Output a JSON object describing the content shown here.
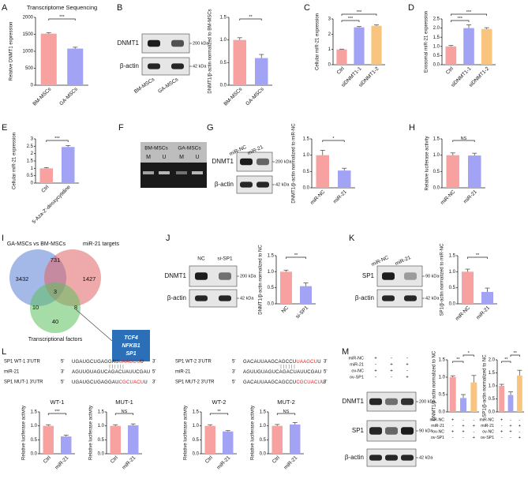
{
  "panel_labels": [
    "A",
    "B",
    "C",
    "D",
    "E",
    "F",
    "G",
    "H",
    "I",
    "J",
    "K",
    "L",
    "M"
  ],
  "chart_data": [
    {
      "type": "bar",
      "title": "Transcriptome Sequencing",
      "y_label": "Relative DNMT1 expression",
      "categories": [
        "BM-MSCs",
        "GA-MSCs"
      ],
      "values": [
        1520,
        1080
      ],
      "errors": [
        30,
        40
      ],
      "colors": [
        "#f7a1a1",
        "#a3a3f5"
      ],
      "ylim": [
        0,
        2000
      ],
      "yticks": [
        0,
        500,
        1000,
        1500,
        2000
      ],
      "significance": [
        {
          "label": "***",
          "pair": [
            0,
            1
          ]
        }
      ]
    },
    {
      "type": "bar",
      "y_label": "DNMT1/β-actin normalized to BM-MSCs",
      "categories": [
        "BM-MSCs",
        "GA-MSCs"
      ],
      "values": [
        1.0,
        0.6
      ],
      "errors": [
        0.05,
        0.08
      ],
      "colors": [
        "#f7a1a1",
        "#a3a3f5"
      ],
      "ylim": [
        0,
        1.5
      ],
      "yticks": [
        {
          "value": 0,
          "label": "0.0"
        },
        0.5,
        {
          "value": 1,
          "label": "1.0"
        },
        1.5
      ],
      "significance": [
        {
          "label": "**",
          "pair": [
            0,
            1
          ]
        }
      ]
    },
    {
      "type": "bar",
      "y_label": "Cellular miR-21 expression",
      "categories": [
        "Ctrl",
        "siDNMT1-1",
        "siDNMT1-2"
      ],
      "values": [
        1.0,
        2.45,
        2.55
      ],
      "errors": [
        0.02,
        0.05,
        0.06
      ],
      "colors": [
        "#f7a1a1",
        "#a3a3f5",
        "#f9c57e"
      ],
      "ylim": [
        0,
        3
      ],
      "yticks": [
        0,
        1,
        2,
        3
      ],
      "significance": [
        {
          "label": "***",
          "pair": [
            0,
            1
          ]
        },
        {
          "label": "***",
          "pair": [
            0,
            2
          ]
        }
      ]
    },
    {
      "type": "bar",
      "y_label": "Exosomal miR-21 expression",
      "categories": [
        "Ctrl",
        "siDNMT1-1",
        "siDNMT1-2"
      ],
      "values": [
        1.0,
        2.0,
        1.95
      ],
      "errors": [
        0.05,
        0.18,
        0.07
      ],
      "colors": [
        "#f7a1a1",
        "#a3a3f5",
        "#f9c57e"
      ],
      "ylim": [
        0,
        2.5
      ],
      "yticks": [
        {
          "value": 0,
          "label": "0.0"
        },
        0.5,
        {
          "value": 1,
          "label": "1.0"
        },
        1.5,
        {
          "value": 2,
          "label": "2.0"
        },
        2.5
      ],
      "significance": [
        {
          "label": "***",
          "pair": [
            0,
            1
          ]
        },
        {
          "label": "***",
          "pair": [
            0,
            2
          ]
        }
      ]
    },
    {
      "type": "bar",
      "y_label": "Cellular miR-21 expression",
      "categories": [
        "Ctrl",
        "5-Aza-2'-deoxycytidine"
      ],
      "values": [
        1.0,
        2.45
      ],
      "errors": [
        0.05,
        0.1
      ],
      "colors": [
        "#f7a1a1",
        "#a3a3f5"
      ],
      "ylim": [
        0,
        3
      ],
      "yticks": [
        0,
        0.5,
        1,
        1.5,
        2,
        2.5,
        3
      ],
      "significance": [
        {
          "label": "***",
          "pair": [
            0,
            1
          ]
        }
      ]
    },
    {
      "type": "bar",
      "y_label": "DNMT1/β-actin normalized to miR-NC",
      "categories": [
        "miR-NC",
        "miR-21"
      ],
      "values": [
        1.0,
        0.53
      ],
      "errors": [
        0.15,
        0.07
      ],
      "colors": [
        "#f7a1a1",
        "#a3a3f5"
      ],
      "ylim": [
        0,
        1.5
      ],
      "yticks": [
        {
          "value": 0,
          "label": "0.0"
        },
        0.5,
        {
          "value": 1,
          "label": "1.0"
        },
        1.5
      ],
      "significance": [
        {
          "label": "*",
          "pair": [
            0,
            1
          ]
        }
      ]
    },
    {
      "type": "bar",
      "y_label": "Relative luciferase activity",
      "categories": [
        "miR-NC",
        "miR-21"
      ],
      "values": [
        1.0,
        0.99
      ],
      "errors": [
        0.07,
        0.07
      ],
      "colors": [
        "#f7a1a1",
        "#a3a3f5"
      ],
      "ylim": [
        0,
        1.5
      ],
      "yticks": [
        {
          "value": 0,
          "label": "0.0"
        },
        0.5,
        {
          "value": 1,
          "label": "1.0"
        },
        1.5
      ],
      "significance": [
        {
          "label": "NS",
          "pair": [
            0,
            1
          ]
        }
      ]
    },
    {
      "type": "bar",
      "y_label": "DNMT1/β-actin normalized to NC",
      "categories": [
        "NC",
        "si-SP1"
      ],
      "values": [
        1.0,
        0.55
      ],
      "errors": [
        0.05,
        0.1
      ],
      "colors": [
        "#f7a1a1",
        "#a3a3f5"
      ],
      "ylim": [
        0,
        1.5
      ],
      "yticks": [
        {
          "value": 0,
          "label": "0.0"
        },
        0.5,
        {
          "value": 1,
          "label": "1.0"
        },
        1.5
      ],
      "significance": [
        {
          "label": "**",
          "pair": [
            0,
            1
          ]
        }
      ]
    },
    {
      "type": "bar",
      "y_label": "SP1/β-actin normalized to miR-NC",
      "categories": [
        "miR-NC",
        "miR-21"
      ],
      "values": [
        1.0,
        0.37
      ],
      "errors": [
        0.08,
        0.12
      ],
      "colors": [
        "#f7a1a1",
        "#a3a3f5"
      ],
      "ylim": [
        0,
        1.5
      ],
      "yticks": [
        {
          "value": 0,
          "label": "0.0"
        },
        0.5,
        {
          "value": 1,
          "label": "1.0"
        },
        1.5
      ],
      "significance": [
        {
          "label": "**",
          "pair": [
            0,
            1
          ]
        }
      ]
    },
    {
      "type": "bar",
      "title": "WT-1",
      "y_label": "Relative luciferase activity",
      "categories": [
        "Ctrl",
        "miR-21"
      ],
      "values": [
        1.0,
        0.62
      ],
      "errors": [
        0.04,
        0.05
      ],
      "colors": [
        "#f7a1a1",
        "#a3a3f5"
      ],
      "ylim": [
        0,
        1.5
      ],
      "yticks": [
        {
          "value": 0,
          "label": "0.0"
        },
        0.5,
        {
          "value": 1,
          "label": "1.0"
        },
        1.5
      ],
      "significance": [
        {
          "label": "***",
          "pair": [
            0,
            1
          ]
        }
      ]
    },
    {
      "type": "bar",
      "title": "MUT-1",
      "y_label": "Relative luciferase activity",
      "categories": [
        "Ctrl",
        "miR-21"
      ],
      "values": [
        1.0,
        1.02
      ],
      "errors": [
        0.04,
        0.05
      ],
      "colors": [
        "#f7a1a1",
        "#a3a3f5"
      ],
      "ylim": [
        0,
        1.5
      ],
      "yticks": [
        {
          "value": 0,
          "label": "0.0"
        },
        0.5,
        {
          "value": 1,
          "label": "1.0"
        },
        1.5
      ],
      "significance": [
        {
          "label": "NS",
          "pair": [
            0,
            1
          ]
        }
      ]
    },
    {
      "type": "bar",
      "title": "WT-2",
      "y_label": "Relative luciferase activity",
      "categories": [
        "Ctrl",
        "miR-21"
      ],
      "values": [
        1.0,
        0.8
      ],
      "errors": [
        0.04,
        0.03
      ],
      "colors": [
        "#f7a1a1",
        "#a3a3f5"
      ],
      "ylim": [
        0,
        1.5
      ],
      "yticks": [
        {
          "value": 0,
          "label": "0.0"
        },
        0.5,
        {
          "value": 1,
          "label": "1.0"
        },
        1.5
      ],
      "significance": [
        {
          "label": "**",
          "pair": [
            0,
            1
          ]
        }
      ]
    },
    {
      "type": "bar",
      "title": "MUT-2",
      "y_label": "Relative luciferase activity",
      "categories": [
        "Ctrl",
        "miR-21"
      ],
      "values": [
        1.0,
        1.05
      ],
      "errors": [
        0.05,
        0.07
      ],
      "colors": [
        "#f7a1a1",
        "#a3a3f5"
      ],
      "ylim": [
        0,
        1.5
      ],
      "yticks": [
        {
          "value": 0,
          "label": "0.0"
        },
        0.5,
        {
          "value": 1,
          "label": "1.0"
        },
        1.5
      ],
      "significance": [
        {
          "label": "NS",
          "pair": [
            0,
            1
          ]
        }
      ]
    },
    {
      "type": "bar",
      "y_label": "DNMT1/β-actin normalized to NC",
      "categories": [
        null,
        null,
        null
      ],
      "values": [
        1.0,
        0.4,
        0.85
      ],
      "errors": [
        0.04,
        0.1,
        0.2
      ],
      "colors": [
        "#f7a1a1",
        "#a3a3f5",
        "#f9c57e"
      ],
      "ylim": [
        0,
        1.5
      ],
      "yticks": [
        {
          "value": 0,
          "label": "0.0"
        },
        0.5,
        {
          "value": 1,
          "label": "1.0"
        },
        1.5
      ],
      "significance": [
        {
          "label": "**",
          "pair": [
            0,
            1
          ]
        },
        {
          "label": "*",
          "pair": [
            1,
            2
          ]
        }
      ],
      "conditions": [
        {
          "name": "miR-NC",
          "signs": [
            "+",
            "-",
            "-"
          ]
        },
        {
          "name": "miR-21",
          "signs": [
            "-",
            "+",
            "+"
          ]
        },
        {
          "name": "ov-NC",
          "signs": [
            "+",
            "+",
            "-"
          ]
        },
        {
          "name": "ov-SP1",
          "signs": [
            "-",
            "-",
            "+"
          ]
        }
      ]
    },
    {
      "type": "bar",
      "y_label": "SP1/β-actin normalized to NC",
      "categories": [
        null,
        null,
        null
      ],
      "values": [
        1.0,
        0.65,
        1.4
      ],
      "errors": [
        0.06,
        0.12,
        0.2
      ],
      "colors": [
        "#f7a1a1",
        "#a3a3f5",
        "#f9c57e"
      ],
      "ylim": [
        0,
        2
      ],
      "yticks": [
        {
          "value": 0,
          "label": "0.0"
        },
        0.5,
        {
          "value": 1,
          "label": "1.0"
        },
        1.5,
        {
          "value": 2,
          "label": "2.0"
        }
      ],
      "significance": [
        {
          "label": "**",
          "pair": [
            0,
            1
          ]
        },
        {
          "label": "**",
          "pair": [
            1,
            2
          ]
        }
      ],
      "conditions": [
        {
          "name": "miR-NC",
          "signs": [
            "+",
            "-",
            "-"
          ]
        },
        {
          "name": "miR-21",
          "signs": [
            "-",
            "+",
            "+"
          ]
        },
        {
          "name": "ov-NC",
          "signs": [
            "+",
            "+",
            "-"
          ]
        },
        {
          "name": "ov-SP1",
          "signs": [
            "-",
            "-",
            "+"
          ]
        }
      ]
    }
  ],
  "blots": [
    {
      "lanes": [
        "BM-MSCs",
        "GA-MSCs"
      ],
      "bands": [
        {
          "name": "DNMT1",
          "size": "200 kDa"
        },
        {
          "name": "β-actin",
          "size": "42 kDa"
        }
      ]
    },
    {
      "groups": [
        "BM-MSCs",
        "GA-MSCs"
      ],
      "lanes": [
        "M",
        "U",
        "M",
        "U"
      ]
    },
    {
      "lanes": [
        "miR-NC",
        "miR-21"
      ],
      "bands": [
        {
          "name": "DNMT1",
          "size": "200 kDa"
        },
        {
          "name": "β-actin",
          "size": "42 kDa"
        }
      ]
    },
    {
      "lanes": [
        "NC",
        "si-SP1"
      ],
      "bands": [
        {
          "name": "DNMT1",
          "size": "200 kDa"
        },
        {
          "name": "β-actin",
          "size": "42 kDa"
        }
      ]
    },
    {
      "lanes": [
        "miR-NC",
        "miR-21"
      ],
      "bands": [
        {
          "name": "SP1",
          "size": "90 kDa"
        },
        {
          "name": "β-actin",
          "size": "42 kDa"
        }
      ]
    },
    {
      "conditions": [
        {
          "name": "miR-NC",
          "signs": [
            "+",
            "-",
            "-"
          ]
        },
        {
          "name": "miR-21",
          "signs": [
            "-",
            "+",
            "+"
          ]
        },
        {
          "name": "ov-NC",
          "signs": [
            "+",
            "+",
            "-"
          ]
        },
        {
          "name": "ov-SP1",
          "signs": [
            "-",
            "-",
            "+"
          ]
        }
      ],
      "bands": [
        {
          "name": "DNMT1",
          "size": "200 kDa"
        },
        {
          "name": "SP1",
          "size": "90 kDa"
        },
        {
          "name": "β-actin",
          "size": "42 kDa"
        }
      ]
    }
  ],
  "venn": {
    "sets": [
      "GA-MSCs vs BM-MSCs",
      "miR-21 targets",
      "Transcriptional factors"
    ],
    "colors": [
      "#5b7fd6",
      "#e06464",
      "#5cc05c"
    ],
    "regions": [
      "3432",
      "731",
      "1427",
      "3",
      "10",
      "8",
      "40"
    ],
    "genes": [
      "TCF4",
      "NFKB1",
      "SP1"
    ]
  },
  "sequences": {
    "highlight_color": "#e02020",
    "blocks": [
      [
        {
          "label": "SP1 WT-1 3'UTR",
          "five": "5'",
          "parts": [
            {
              "text": "UGAUGCUGAGGAU",
              "highlight": false
            },
            {
              "text": "UAAGCU",
              "highlight": true
            },
            {
              "text": "U",
              "highlight": false
            }
          ],
          "three": "3'"
        },
        {
          "label": "miR-21",
          "five": "3'",
          "parts": [
            {
              "text": "AGUUGUAGUCAGACUAUUCGAU",
              "highlight": false
            }
          ],
          "three": "5'"
        },
        {
          "label": "SP1 MUT-1 3'UTR",
          "five": "5'",
          "parts": [
            {
              "text": "UGAUGCUGAGGAU",
              "highlight": false
            },
            {
              "text": "CGCUACU",
              "highlight": true
            },
            {
              "text": "U",
              "highlight": false
            }
          ],
          "three": "3'"
        }
      ],
      [
        {
          "label": "SP1 WT-2 3'UTR",
          "five": "5'",
          "parts": [
            {
              "text": "GACAUUAAGCAGCCU",
              "highlight": false
            },
            {
              "text": "UAAGCU",
              "highlight": true
            },
            {
              "text": "U",
              "highlight": false
            }
          ],
          "three": "3'"
        },
        {
          "label": "miR-21",
          "five": "3'",
          "parts": [
            {
              "text": "AGUUGUAGUCAGACUAUUCGAU",
              "highlight": false
            }
          ],
          "three": "5'"
        },
        {
          "label": "SP1 MUT-2 3'UTR",
          "five": "5'",
          "parts": [
            {
              "text": "GACAUUAAGCAGCCU",
              "highlight": false
            },
            {
              "text": "CGCUACU",
              "highlight": true
            },
            {
              "text": "U",
              "highlight": false
            }
          ],
          "three": "3'"
        }
      ]
    ]
  }
}
